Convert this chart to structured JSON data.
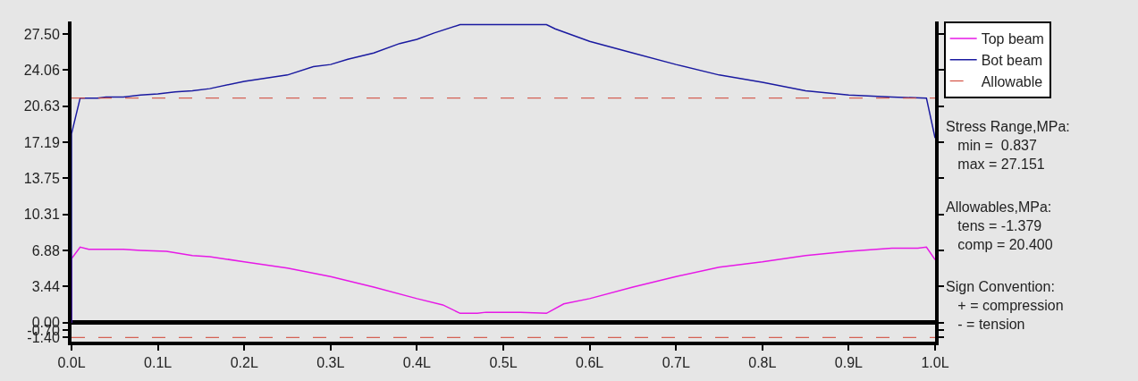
{
  "chart_data": {
    "type": "line",
    "xlim": [
      0,
      1
    ],
    "ylim": [
      -1.8,
      28.7
    ],
    "xticks": [
      {
        "value": 0,
        "label": "0.0L"
      },
      {
        "value": 0.1,
        "label": "0.1L"
      },
      {
        "value": 0.2,
        "label": "0.2L"
      },
      {
        "value": 0.3,
        "label": "0.3L"
      },
      {
        "value": 0.4,
        "label": "0.4L"
      },
      {
        "value": 0.5,
        "label": "0.5L"
      },
      {
        "value": 0.6,
        "label": "0.6L"
      },
      {
        "value": 0.7,
        "label": "0.7L"
      },
      {
        "value": 0.8,
        "label": "0.8L"
      },
      {
        "value": 0.9,
        "label": "0.9L"
      },
      {
        "value": 1,
        "label": "1.0L"
      }
    ],
    "yticks": [
      {
        "value": -1.4,
        "label": "-1.40"
      },
      {
        "value": -0.7,
        "label": "-0.70"
      },
      {
        "value": 0,
        "label": "0.00"
      },
      3.44,
      6.88,
      10.31,
      13.75,
      17.19,
      20.63,
      24.06,
      {
        "value": 27.5,
        "label": "27.50"
      }
    ],
    "series": [
      {
        "name": "Top beam",
        "color": "#e619e6",
        "x": [
          0,
          0,
          0.01,
          0.02,
          0.06,
          0.08,
          0.11,
          0.14,
          0.16,
          0.2,
          0.25,
          0.3,
          0.35,
          0.4,
          0.43,
          0.45,
          0.47,
          0.48,
          0.52,
          0.55,
          0.57,
          0.6,
          0.65,
          0.7,
          0.75,
          0.8,
          0.85,
          0.9,
          0.95,
          0.98,
          0.99,
          1
        ],
        "values": [
          0,
          6.1,
          7.2,
          7.0,
          7.0,
          6.9,
          6.8,
          6.4,
          6.3,
          5.8,
          5.2,
          4.4,
          3.4,
          2.3,
          1.7,
          0.9,
          0.9,
          1.0,
          1.0,
          0.9,
          1.8,
          2.3,
          3.4,
          4.4,
          5.3,
          5.8,
          6.4,
          6.8,
          7.1,
          7.1,
          7.2,
          6.0
        ]
      },
      {
        "name": "Bot beam",
        "color": "#1a1aa0",
        "x": [
          0,
          0,
          0.01,
          0.03,
          0.04,
          0.06,
          0.08,
          0.1,
          0.12,
          0.14,
          0.16,
          0.2,
          0.25,
          0.28,
          0.3,
          0.32,
          0.35,
          0.38,
          0.4,
          0.42,
          0.45,
          0.55,
          0.56,
          0.6,
          0.65,
          0.7,
          0.75,
          0.8,
          0.85,
          0.9,
          0.95,
          0.99,
          1
        ],
        "values": [
          0,
          18.0,
          21.4,
          21.4,
          21.5,
          21.5,
          21.7,
          21.8,
          22.0,
          22.1,
          22.3,
          23.0,
          23.6,
          24.4,
          24.6,
          25.1,
          25.7,
          26.6,
          27.0,
          27.6,
          28.4,
          28.4,
          28.0,
          26.8,
          25.7,
          24.6,
          23.6,
          22.9,
          22.1,
          21.7,
          21.5,
          21.4,
          17.6
        ]
      }
    ],
    "ref_lines": [
      {
        "axis": "y",
        "value": 21.4,
        "label": "Allowable",
        "color": "#d04030",
        "line_style": "dashed"
      },
      {
        "axis": "y",
        "value": -1.4,
        "color": "#d04030",
        "line_style": "dashed"
      }
    ],
    "annotations": [
      "Stress Range,MPa:\n   min =  0.837\n   max = 27.151",
      "Allowables,MPa:\n   tens = -1.379\n   comp = 20.400",
      "Sign Convention:\n   + = compression\n   - = tension"
    ],
    "legend": "top right",
    "grid": false
  }
}
